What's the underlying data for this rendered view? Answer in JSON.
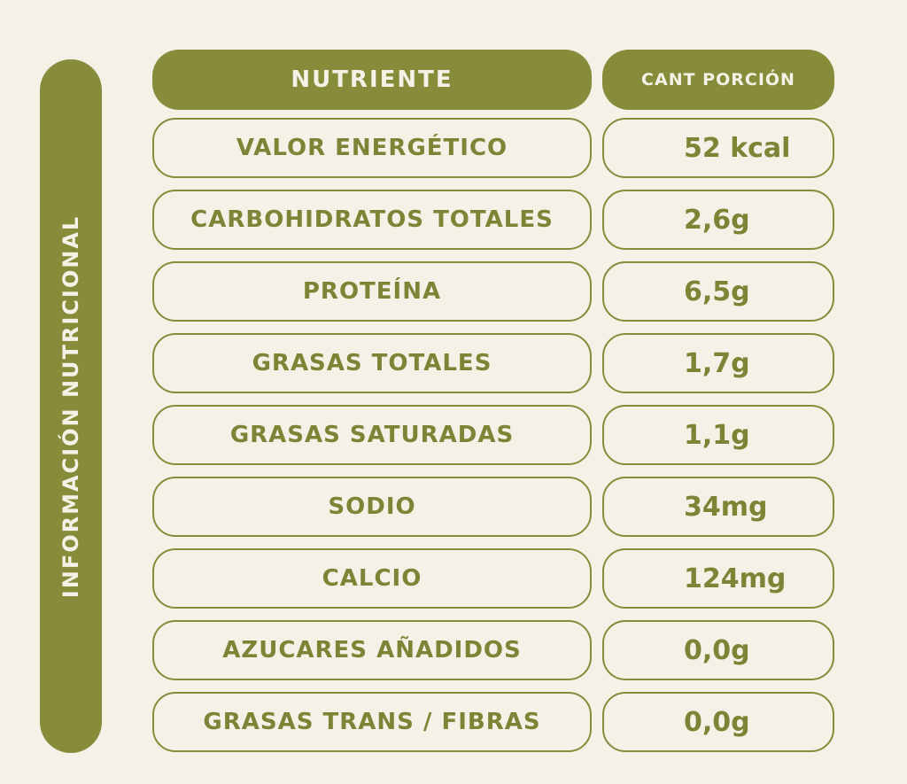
{
  "side_title": "INFORMACIÓN NUTRICIONAL",
  "header": {
    "nutrient": "NUTRIENTE",
    "amount": "CANT PORCIÓN"
  },
  "rows": [
    {
      "nutrient": "VALOR ENERGÉTICO",
      "amount": "52 kcal"
    },
    {
      "nutrient": "CARBOHIDRATOS TOTALES",
      "amount": "2,6g"
    },
    {
      "nutrient": "PROTEÍNA",
      "amount": "6,5g"
    },
    {
      "nutrient": "GRASAS TOTALES",
      "amount": "1,7g"
    },
    {
      "nutrient": "GRASAS SATURADAS",
      "amount": "1,1g"
    },
    {
      "nutrient": "SODIO",
      "amount": "34mg"
    },
    {
      "nutrient": "CALCIO",
      "amount": "124mg"
    },
    {
      "nutrient": "AZUCARES AÑADIDOS",
      "amount": "0,0g"
    },
    {
      "nutrient": "GRASAS TRANS / FIBRAS",
      "amount": "0,0g"
    }
  ],
  "colors": {
    "accent": "#868c3a",
    "text": "#7e8436",
    "background": "#f5f1e6"
  }
}
